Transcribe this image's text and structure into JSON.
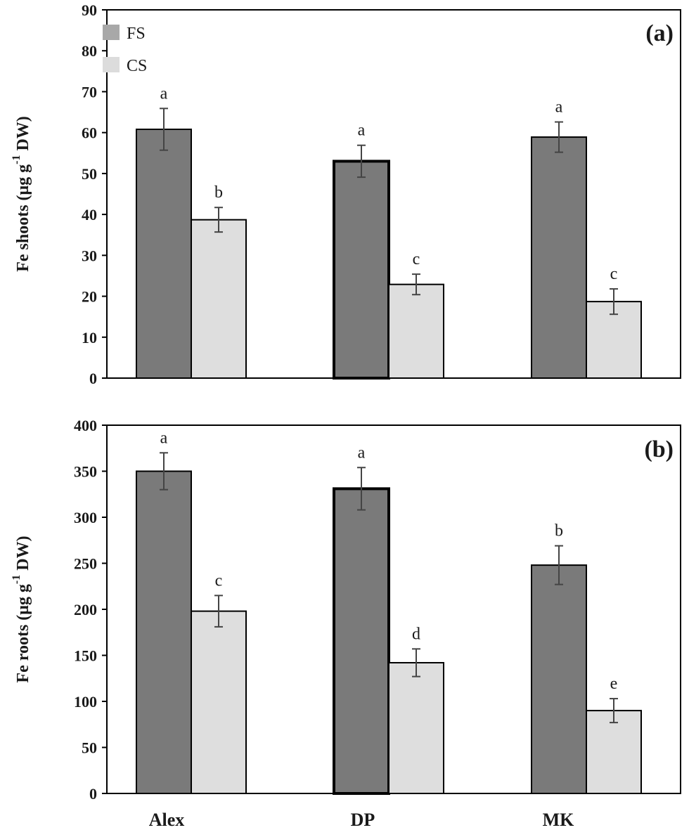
{
  "chart_data": [
    {
      "type": "bar",
      "panel_label": "(a)",
      "categories": [
        "Alex",
        "DP",
        "MK"
      ],
      "series": [
        {
          "name": "FS",
          "color": "#7a7a7a",
          "values": [
            60.8,
            53.0,
            58.9
          ],
          "errors": [
            5.1,
            3.9,
            3.7
          ],
          "letters": [
            "a",
            "a",
            "a"
          ]
        },
        {
          "name": "CS",
          "color": "#dedede",
          "values": [
            38.7,
            22.9,
            18.7
          ],
          "errors": [
            3.0,
            2.5,
            3.1
          ],
          "letters": [
            "b",
            "c",
            "c"
          ]
        }
      ],
      "ylabel": "Fe shoots (μg g",
      "ylabel_sup": "-1",
      "ylabel_suffix": " DW)",
      "ylim": [
        0,
        90
      ],
      "yticks": [
        "0",
        "10",
        "20",
        "30",
        "40",
        "50",
        "60",
        "70",
        "80",
        "90"
      ],
      "grid": false,
      "legend": "top-left"
    },
    {
      "type": "bar",
      "panel_label": "(b)",
      "categories": [
        "Alex",
        "DP",
        "MK"
      ],
      "series": [
        {
          "name": "FS",
          "color": "#7a7a7a",
          "values": [
            350,
            331,
            248
          ],
          "errors": [
            20,
            23,
            21
          ],
          "letters": [
            "a",
            "a",
            "b"
          ]
        },
        {
          "name": "CS",
          "color": "#dedede",
          "values": [
            198,
            142,
            90
          ],
          "errors": [
            17,
            15,
            13
          ],
          "letters": [
            "c",
            "d",
            "e"
          ]
        }
      ],
      "ylabel": "Fe roots (μg g",
      "ylabel_sup": "-1",
      "ylabel_suffix": " DW)",
      "ylim": [
        0,
        400
      ],
      "yticks": [
        "0",
        "50",
        "100",
        "150",
        "200",
        "250",
        "300",
        "350",
        "400"
      ],
      "grid": false
    }
  ],
  "x_categories": [
    "Alex",
    "DP",
    "MK"
  ]
}
